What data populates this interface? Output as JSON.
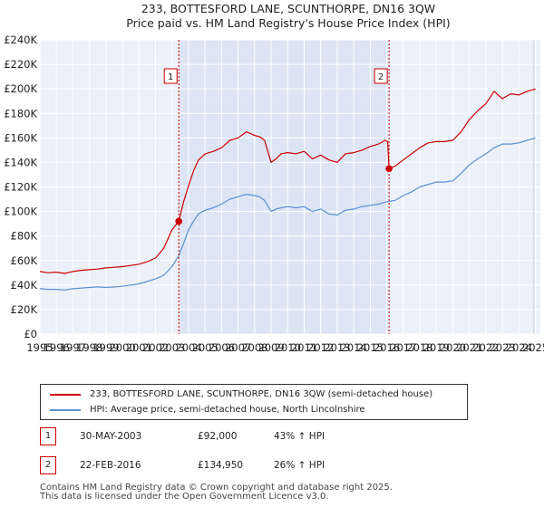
{
  "chart_data": {
    "type": "line",
    "title": "233, BOTTESFORD LANE, SCUNTHORPE, DN16 3QW",
    "subtitle": "Price paid vs. HM Land Registry's House Price Index (HPI)",
    "xlim": [
      1995.0,
      2025.3
    ],
    "ylim": [
      0,
      240000
    ],
    "y_ticks": [
      0,
      20000,
      40000,
      60000,
      80000,
      100000,
      120000,
      140000,
      160000,
      180000,
      200000,
      220000,
      240000
    ],
    "y_tick_labels": [
      "£0",
      "£20K",
      "£40K",
      "£60K",
      "£80K",
      "£100K",
      "£120K",
      "£140K",
      "£160K",
      "£180K",
      "£200K",
      "£220K",
      "£240K"
    ],
    "x_ticks": [
      1995,
      1996,
      1997,
      1998,
      1999,
      2000,
      2001,
      2002,
      2003,
      2004,
      2005,
      2006,
      2007,
      2008,
      2009,
      2010,
      2011,
      2012,
      2013,
      2014,
      2015,
      2016,
      2017,
      2018,
      2019,
      2020,
      2021,
      2022,
      2023,
      2024,
      2025
    ],
    "x_tick_labels": [
      "1995",
      "1996",
      "1997",
      "1998",
      "1999",
      "2000",
      "2001",
      "2002",
      "2003",
      "2004",
      "2005",
      "2006",
      "2007",
      "2008",
      "2009",
      "2010",
      "2011",
      "2012",
      "2013",
      "2014",
      "2015",
      "2016",
      "2017",
      "2018",
      "2019",
      "2020",
      "2021",
      "2022",
      "2023",
      "2024",
      "2025"
    ],
    "grid": true,
    "legend_position": "below",
    "series": [
      {
        "name": "233, BOTTESFORD LANE, SCUNTHORPE, DN16 3QW (semi-detached house)",
        "color": "#cc0000",
        "x": [
          1995.0,
          1995.5,
          1996.0,
          1996.5,
          1997.0,
          1997.5,
          1998.0,
          1998.5,
          1999.0,
          1999.5,
          2000.0,
          2000.5,
          2001.0,
          2001.5,
          2002.0,
          2002.5,
          2003.0,
          2003.41,
          2003.7,
          2004.0,
          2004.3,
          2004.6,
          2005.0,
          2005.5,
          2006.0,
          2006.5,
          2007.0,
          2007.5,
          2008.0,
          2008.3,
          2008.6,
          2009.0,
          2009.3,
          2009.6,
          2010.0,
          2010.5,
          2011.0,
          2011.5,
          2012.0,
          2012.5,
          2013.0,
          2013.5,
          2014.0,
          2014.5,
          2015.0,
          2015.5,
          2015.9,
          2016.05,
          2016.14,
          2016.5,
          2017.0,
          2017.5,
          2018.0,
          2018.5,
          2019.0,
          2019.5,
          2020.0,
          2020.5,
          2021.0,
          2021.5,
          2022.0,
          2022.5,
          2023.0,
          2023.5,
          2024.0,
          2024.5,
          2025.0
        ],
        "values": [
          51000,
          50000,
          50500,
          49500,
          51000,
          52000,
          52500,
          53000,
          54000,
          54500,
          55000,
          56000,
          57000,
          59000,
          62000,
          70000,
          85000,
          92000,
          108000,
          121000,
          133000,
          142000,
          147000,
          149000,
          152000,
          158000,
          160000,
          165000,
          162000,
          161000,
          158000,
          140000,
          143000,
          147000,
          148000,
          147000,
          149000,
          143000,
          146000,
          142000,
          140000,
          147000,
          148000,
          150000,
          153000,
          155000,
          158000,
          157000,
          134950,
          137000,
          142000,
          147000,
          152000,
          156000,
          157000,
          157000,
          158000,
          165000,
          175000,
          182000,
          188000,
          198000,
          192000,
          196000,
          195000,
          198000,
          200000
        ]
      },
      {
        "name": "HPI: Average price, semi-detached house, North Lincolnshire",
        "color": "#5b8fd4",
        "x": [
          1995.0,
          1995.5,
          1996.0,
          1996.5,
          1997.0,
          1997.5,
          1998.0,
          1998.5,
          1999.0,
          1999.5,
          2000.0,
          2000.5,
          2001.0,
          2001.5,
          2002.0,
          2002.5,
          2003.0,
          2003.41,
          2003.7,
          2004.0,
          2004.3,
          2004.6,
          2005.0,
          2005.5,
          2006.0,
          2006.5,
          2007.0,
          2007.5,
          2008.0,
          2008.3,
          2008.6,
          2009.0,
          2009.3,
          2009.6,
          2010.0,
          2010.5,
          2011.0,
          2011.5,
          2012.0,
          2012.5,
          2013.0,
          2013.5,
          2014.0,
          2014.5,
          2015.0,
          2015.5,
          2016.0,
          2016.5,
          2017.0,
          2017.5,
          2018.0,
          2018.5,
          2019.0,
          2019.5,
          2020.0,
          2020.5,
          2021.0,
          2021.5,
          2022.0,
          2022.5,
          2023.0,
          2023.5,
          2024.0,
          2024.5,
          2025.0
        ],
        "values": [
          37000,
          36500,
          36500,
          36000,
          37000,
          37500,
          38000,
          38500,
          38000,
          38500,
          39000,
          40000,
          41000,
          43000,
          45000,
          48000,
          55000,
          64000,
          74000,
          85000,
          92000,
          98000,
          101000,
          103000,
          106000,
          110000,
          112000,
          114000,
          113000,
          112000,
          109000,
          100000,
          102000,
          103000,
          104000,
          103000,
          104000,
          100000,
          102000,
          98000,
          97000,
          101000,
          102000,
          104000,
          105000,
          106000,
          108000,
          109000,
          113000,
          116000,
          120000,
          122000,
          124000,
          124000,
          125000,
          131000,
          138000,
          143000,
          147000,
          152000,
          155000,
          155000,
          156000,
          158000,
          160000
        ]
      }
    ],
    "sales": [
      {
        "label": "1",
        "x": 2003.41,
        "value": 92000
      },
      {
        "label": "2",
        "x": 2016.14,
        "value": 134950
      }
    ]
  },
  "legend": {
    "red_label": "233, BOTTESFORD LANE, SCUNTHORPE, DN16 3QW (semi-detached house)",
    "blue_label": "HPI: Average price, semi-detached house, North Lincolnshire"
  },
  "sales_table": [
    {
      "num": "1",
      "date": "30-MAY-2003",
      "price": "£92,000",
      "hpi": "43% ↑ HPI"
    },
    {
      "num": "2",
      "date": "22-FEB-2016",
      "price": "£134,950",
      "hpi": "26% ↑ HPI"
    }
  ],
  "footer": {
    "line1": "Contains HM Land Registry data © Crown copyright and database right 2025.",
    "line2": "This data is licensed under the Open Government Licence v3.0."
  },
  "colors": {
    "red": "#cc0000",
    "blue": "#5b8fd4",
    "plot_bg": "#ecf0f8",
    "span_bg": "#dde5f4",
    "grid": "#ffffff"
  }
}
